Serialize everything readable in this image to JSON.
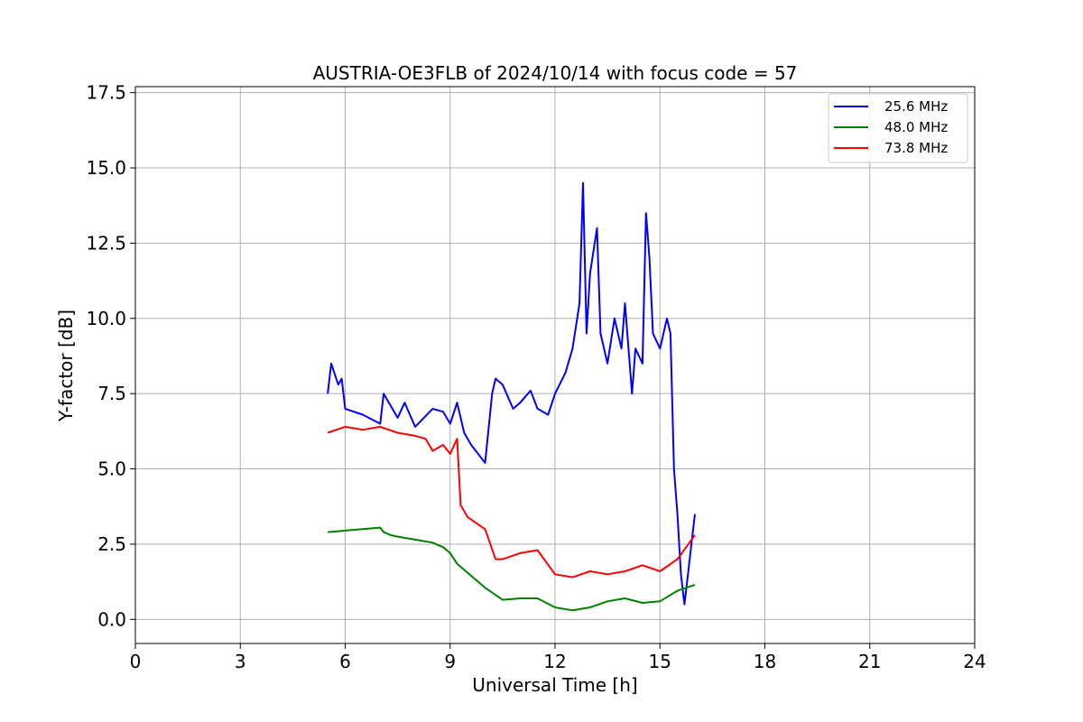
{
  "chart_data": {
    "type": "line",
    "title": "AUSTRIA-OE3FLB of 2024/10/14 with focus code = 57",
    "xlabel": "Universal Time [h]",
    "ylabel": "Y-factor [dB]",
    "xlim": [
      0,
      24
    ],
    "ylim": [
      -0.8,
      17.7
    ],
    "xticks": [
      0,
      3,
      6,
      9,
      12,
      15,
      18,
      21,
      24
    ],
    "xtick_labels": [
      "0",
      "3",
      "6",
      "9",
      "12",
      "15",
      "18",
      "21",
      "24"
    ],
    "yticks": [
      0,
      2.5,
      5,
      7.5,
      10,
      12.5,
      15,
      17.5
    ],
    "ytick_labels": [
      "0.0",
      "2.5",
      "5.0",
      "7.5",
      "10.0",
      "12.5",
      "15.0",
      "17.5"
    ],
    "grid": true,
    "legend_position": "top-right",
    "series": [
      {
        "name": "25.6 MHz",
        "color": "#0000ff",
        "x": [
          5.5,
          5.6,
          5.8,
          5.9,
          6.0,
          6.5,
          7.0,
          7.1,
          7.5,
          7.7,
          8.0,
          8.5,
          8.8,
          9.0,
          9.2,
          9.4,
          9.6,
          9.8,
          10.0,
          10.2,
          10.3,
          10.5,
          10.8,
          11.0,
          11.3,
          11.5,
          11.8,
          12.0,
          12.3,
          12.5,
          12.7,
          12.8,
          12.9,
          13.0,
          13.2,
          13.3,
          13.5,
          13.7,
          13.9,
          14.0,
          14.2,
          14.3,
          14.5,
          14.6,
          14.7,
          14.8,
          15.0,
          15.2,
          15.3,
          15.4,
          15.5,
          15.6,
          15.7,
          15.8,
          15.9,
          16.0
        ],
        "y": [
          7.5,
          8.5,
          7.8,
          8.0,
          7.0,
          6.8,
          6.5,
          7.5,
          6.7,
          7.2,
          6.4,
          7.0,
          6.9,
          6.5,
          7.2,
          6.2,
          5.8,
          5.5,
          5.2,
          7.5,
          8.0,
          7.8,
          7.0,
          7.2,
          7.6,
          7.0,
          6.8,
          7.5,
          8.2,
          9.0,
          10.5,
          14.5,
          9.5,
          11.5,
          13.0,
          9.5,
          8.5,
          10.0,
          9.0,
          10.5,
          7.5,
          9.0,
          8.5,
          13.5,
          12.0,
          9.5,
          9.0,
          10.0,
          9.5,
          5.0,
          3.5,
          1.5,
          0.5,
          1.5,
          2.5,
          3.5
        ]
      },
      {
        "name": "48.0 MHz",
        "color": "#008000",
        "x": [
          5.5,
          6.0,
          6.5,
          7.0,
          7.1,
          7.3,
          7.5,
          8.0,
          8.5,
          8.8,
          9.0,
          9.2,
          9.5,
          10.0,
          10.5,
          11.0,
          11.5,
          12.0,
          12.5,
          13.0,
          13.5,
          14.0,
          14.5,
          15.0,
          15.5,
          16.0
        ],
        "y": [
          2.9,
          2.95,
          3.0,
          3.05,
          2.9,
          2.8,
          2.75,
          2.65,
          2.55,
          2.4,
          2.2,
          1.85,
          1.55,
          1.05,
          0.65,
          0.7,
          0.7,
          0.4,
          0.3,
          0.4,
          0.6,
          0.7,
          0.55,
          0.6,
          0.95,
          1.15
        ]
      },
      {
        "name": "73.8 MHz",
        "color": "#ff0000",
        "x": [
          5.5,
          6.0,
          6.5,
          7.0,
          7.5,
          8.0,
          8.3,
          8.5,
          8.8,
          9.0,
          9.2,
          9.3,
          9.5,
          10.0,
          10.3,
          10.5,
          11.0,
          11.5,
          12.0,
          12.5,
          13.0,
          13.5,
          14.0,
          14.5,
          15.0,
          15.5,
          16.0
        ],
        "y": [
          6.2,
          6.4,
          6.3,
          6.4,
          6.2,
          6.1,
          6.0,
          5.6,
          5.8,
          5.5,
          6.0,
          3.8,
          3.4,
          3.0,
          2.0,
          2.0,
          2.2,
          2.3,
          1.5,
          1.4,
          1.6,
          1.5,
          1.6,
          1.8,
          1.6,
          2.0,
          2.8
        ]
      }
    ]
  }
}
